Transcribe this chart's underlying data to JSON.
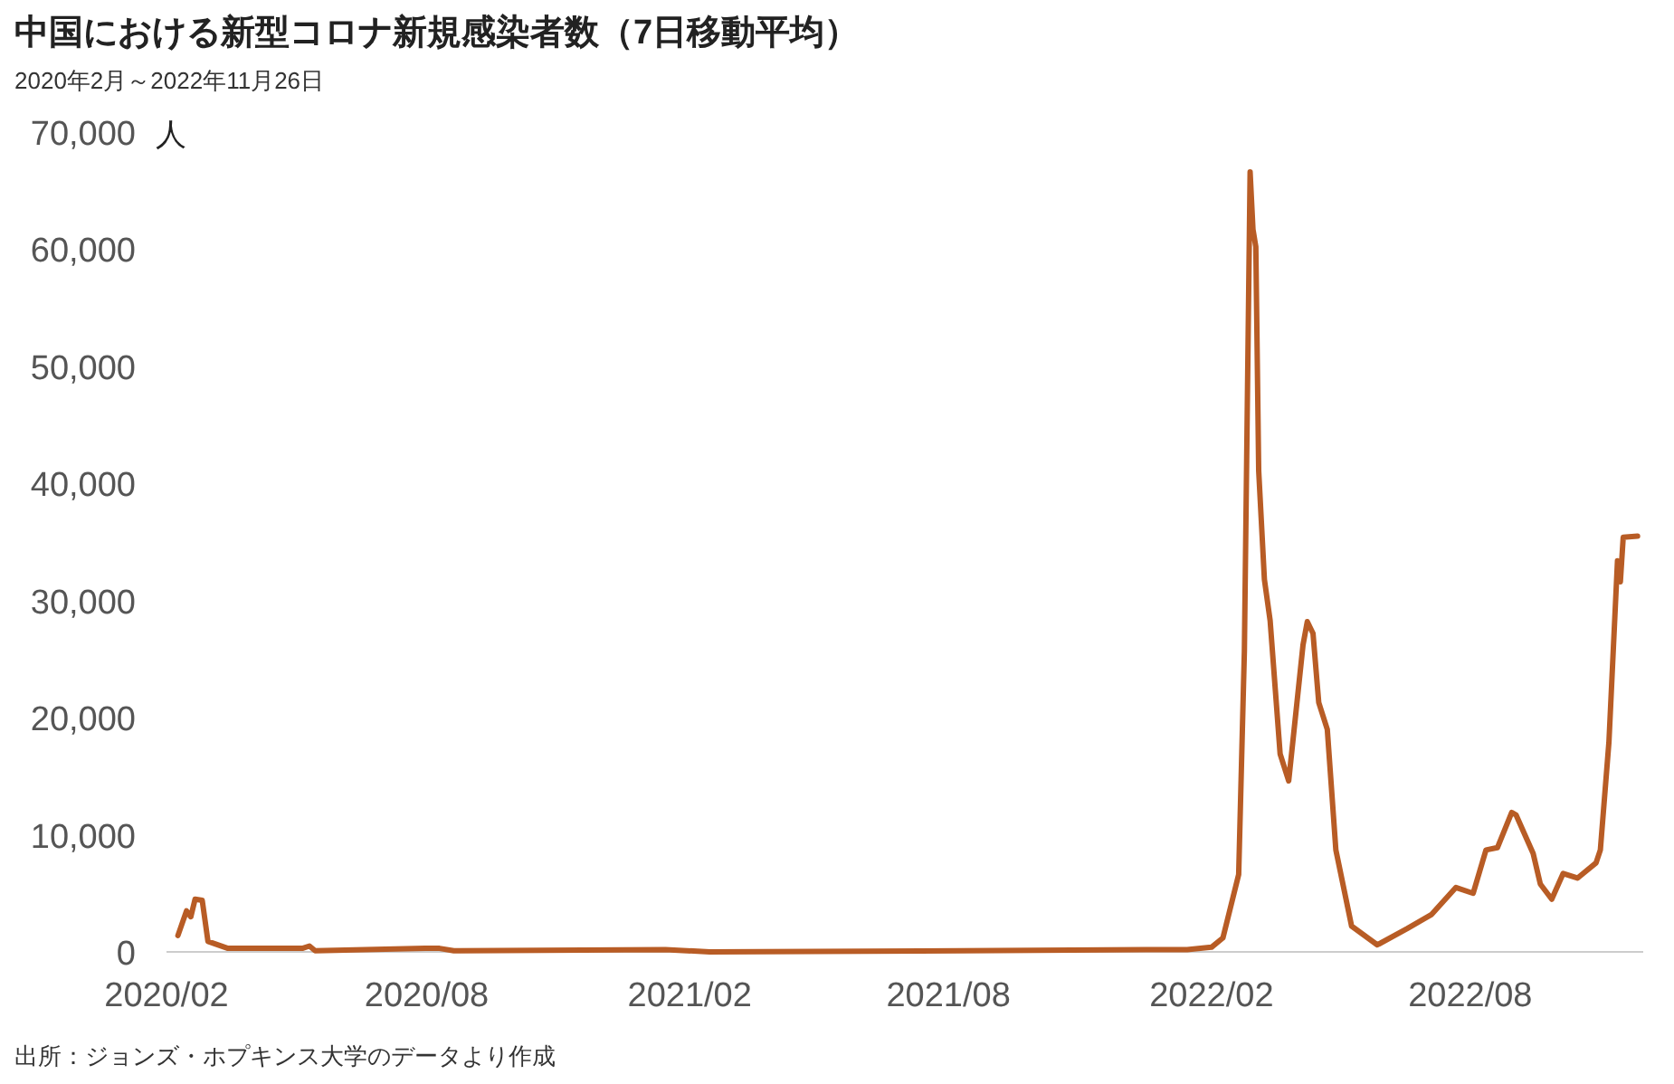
{
  "chart_data": {
    "type": "line",
    "title": "中国における新型コロナ新規感染者数（7日移動平均）",
    "subtitle": "2020年2月～2022年11月26日",
    "ylabel": "人",
    "annotations": [
      "出所：ジョンズ・ホプキンス大学のデータより作成"
    ],
    "x": [
      "2020-02-09",
      "2020-02-15",
      "2020-02-18",
      "2020-02-21",
      "2020-02-26",
      "2020-03-01",
      "2020-03-15",
      "2020-05-06",
      "2020-05-11",
      "2020-05-15",
      "2020-07-31",
      "2020-08-10",
      "2020-08-20",
      "2021-01-15",
      "2021-02-15",
      "2021-08-10",
      "2021-12-17",
      "2022-01-15",
      "2022-02-01",
      "2022-02-09",
      "2022-02-20",
      "2022-02-24",
      "2022-02-28",
      "2022-03-02",
      "2022-03-04",
      "2022-03-06",
      "2022-03-10",
      "2022-03-14",
      "2022-03-21",
      "2022-03-27",
      "2022-04-06",
      "2022-04-09",
      "2022-04-13",
      "2022-04-17",
      "2022-04-23",
      "2022-04-29",
      "2022-05-10",
      "2022-05-28",
      "2022-06-18",
      "2022-07-05",
      "2022-07-22",
      "2022-08-03",
      "2022-08-12",
      "2022-08-20",
      "2022-08-30",
      "2022-09-02",
      "2022-09-14",
      "2022-09-19",
      "2022-09-27",
      "2022-10-05",
      "2022-10-15",
      "2022-10-28",
      "2022-10-31",
      "2022-11-06",
      "2022-11-12",
      "2022-11-14",
      "2022-11-16",
      "2022-11-26"
    ],
    "series": [
      {
        "color": "#b85c25",
        "values": [
          1400,
          3500,
          3000,
          4500,
          4400,
          900,
          300,
          300,
          500,
          100,
          300,
          300,
          100,
          200,
          0,
          100,
          200,
          200,
          400,
          1200,
          6600,
          25700,
          66600,
          61700,
          60200,
          41100,
          31800,
          28300,
          16900,
          14600,
          26200,
          28200,
          27200,
          21300,
          19000,
          8700,
          2200,
          600,
          2000,
          3200,
          5500,
          5000,
          8700,
          8900,
          11900,
          11700,
          8400,
          5800,
          4500,
          6700,
          6300,
          7600,
          8700,
          17900,
          33400,
          31600,
          35400,
          35500
        ]
      }
    ],
    "xlim": [
      "2020-02-01",
      "2022-11-30"
    ],
    "xticks": [
      {
        "value": "2020-02-01",
        "label": "2020/02"
      },
      {
        "value": "2020-08-01",
        "label": "2020/08"
      },
      {
        "value": "2021-02-01",
        "label": "2021/02"
      },
      {
        "value": "2021-08-01",
        "label": "2021/08"
      },
      {
        "value": "2022-02-01",
        "label": "2022/02"
      },
      {
        "value": "2022-08-01",
        "label": "2022/08"
      }
    ],
    "ylim": [
      0,
      70000
    ],
    "yticks": [
      {
        "value": 0,
        "label": "0"
      },
      {
        "value": 10000,
        "label": "10,000"
      },
      {
        "value": 20000,
        "label": "20,000"
      },
      {
        "value": 30000,
        "label": "30,000"
      },
      {
        "value": 40000,
        "label": "40,000"
      },
      {
        "value": 50000,
        "label": "50,000"
      },
      {
        "value": 60000,
        "label": "60,000"
      },
      {
        "value": 70000,
        "label": "70,000"
      }
    ],
    "grid": false,
    "marker": "none",
    "line_style": "solid"
  }
}
